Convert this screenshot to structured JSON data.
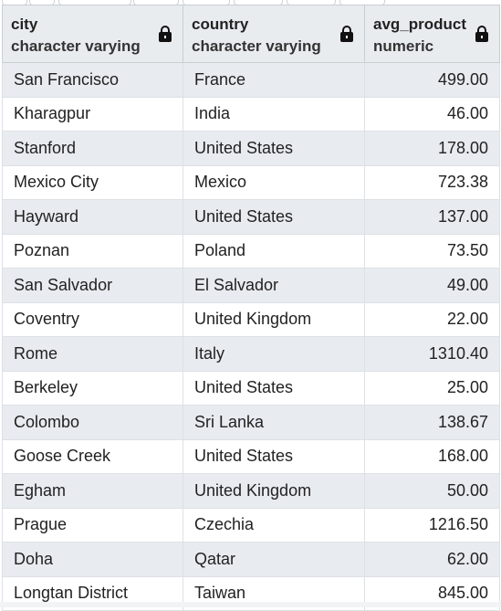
{
  "columns": [
    {
      "name": "city",
      "type": "character varying"
    },
    {
      "name": "country",
      "type": "character varying"
    },
    {
      "name": "avg_product",
      "type": "numeric"
    }
  ],
  "rows": [
    {
      "city": "San Francisco",
      "country": "France",
      "avg_product": "499.00"
    },
    {
      "city": "Kharagpur",
      "country": "India",
      "avg_product": "46.00"
    },
    {
      "city": "Stanford",
      "country": "United States",
      "avg_product": "178.00"
    },
    {
      "city": "Mexico City",
      "country": "Mexico",
      "avg_product": "723.38"
    },
    {
      "city": "Hayward",
      "country": "United States",
      "avg_product": "137.00"
    },
    {
      "city": "Poznan",
      "country": "Poland",
      "avg_product": "73.50"
    },
    {
      "city": "San Salvador",
      "country": "El Salvador",
      "avg_product": "49.00"
    },
    {
      "city": "Coventry",
      "country": "United Kingdom",
      "avg_product": "22.00"
    },
    {
      "city": "Rome",
      "country": "Italy",
      "avg_product": "1310.40"
    },
    {
      "city": "Berkeley",
      "country": "United States",
      "avg_product": "25.00"
    },
    {
      "city": "Colombo",
      "country": "Sri Lanka",
      "avg_product": "138.67"
    },
    {
      "city": "Goose Creek",
      "country": "United States",
      "avg_product": "168.00"
    },
    {
      "city": "Egham",
      "country": "United Kingdom",
      "avg_product": "50.00"
    },
    {
      "city": "Prague",
      "country": "Czechia",
      "avg_product": "1216.50"
    },
    {
      "city": "Doha",
      "country": "Qatar",
      "avg_product": "62.00"
    },
    {
      "city": "Longtan District",
      "country": "Taiwan",
      "avg_product": "845.00"
    }
  ],
  "icons": {
    "column_lock": "lock-icon"
  }
}
